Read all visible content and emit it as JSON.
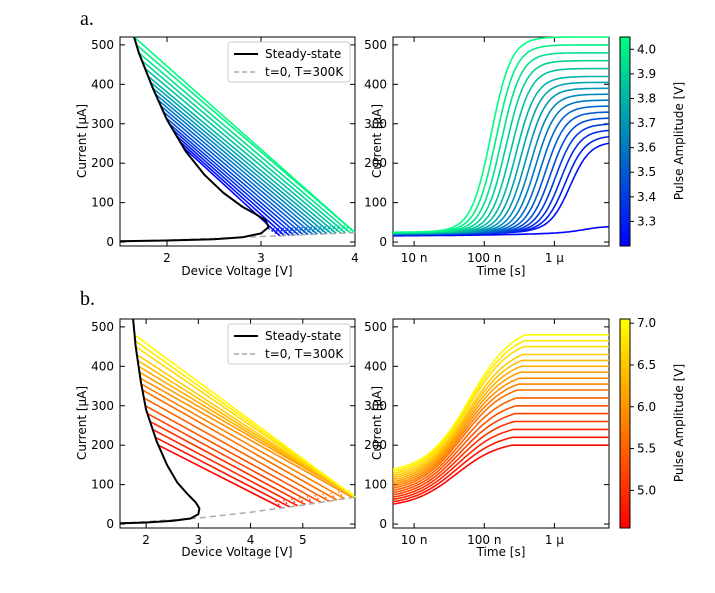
{
  "panels": [
    {
      "label": "a.",
      "colormap": "winter",
      "amplitude_range": [
        3.2,
        4.05
      ],
      "iv": {
        "type": "line",
        "xlabel": "Device Voltage [V]",
        "ylabel": "Current [μA]",
        "xlim": [
          1.5,
          4.0
        ],
        "ylim": [
          -10,
          520
        ],
        "xticks": [
          2,
          3,
          4
        ],
        "yticks": [
          0,
          100,
          200,
          300,
          400,
          500
        ],
        "legend": {
          "placement": "upper-right",
          "entries": [
            {
              "label": "Steady-state",
              "style": "solid",
              "color": "#000000"
            },
            {
              "label": "t=0, T=300K",
              "style": "dashed",
              "color": "#aaaaaa"
            }
          ]
        },
        "steady_state": {
          "x": [
            1.5,
            2.0,
            2.5,
            2.8,
            3.0,
            3.08,
            3.05,
            2.95,
            2.8,
            2.6,
            2.4,
            2.2,
            2.0,
            1.85,
            1.7,
            1.65
          ],
          "y": [
            2,
            4,
            7,
            12,
            22,
            38,
            55,
            70,
            90,
            125,
            170,
            230,
            310,
            390,
            480,
            520
          ]
        },
        "t0": {
          "x": [
            1.5,
            2.0,
            2.5,
            3.0,
            3.5,
            4.0
          ],
          "y": [
            2,
            5,
            9,
            14,
            19,
            24
          ]
        },
        "pulse_lines": {
          "amplitudes": [
            3.2,
            3.25,
            3.3,
            3.35,
            3.4,
            3.45,
            3.5,
            3.55,
            3.6,
            3.65,
            3.7,
            3.75,
            3.8,
            3.85,
            3.9,
            3.95,
            4.0,
            4.05
          ],
          "end_currents": [
            240,
            255,
            270,
            285,
            300,
            315,
            330,
            345,
            360,
            375,
            390,
            405,
            420,
            440,
            460,
            480,
            500,
            520
          ]
        }
      },
      "transient": {
        "type": "line",
        "xlabel": "Time [s]",
        "ylabel": "Current [μA]",
        "xscale": "log",
        "xlim": [
          5e-09,
          6e-06
        ],
        "ylim": [
          -10,
          520
        ],
        "xticks": [
          1e-08,
          1e-07,
          1e-06
        ],
        "xticklabels": [
          "10 n",
          "100 n",
          "1 μ"
        ],
        "yticks": [
          0,
          100,
          200,
          300,
          400,
          500
        ],
        "low_curve": {
          "amplitude": 3.2,
          "final": 40
        }
      },
      "colorbar": {
        "label": "Pulse Amplitude [V]",
        "vmin": 3.2,
        "vmax": 4.05,
        "ticks": [
          3.3,
          3.4,
          3.5,
          3.6,
          3.7,
          3.8,
          3.9,
          4.0
        ],
        "ticklabels": [
          "3.3",
          "3.4",
          "3.5",
          "3.6",
          "3.7",
          "3.8",
          "3.9",
          "4.0"
        ]
      }
    },
    {
      "label": "b.",
      "colormap": "autumn",
      "amplitude_range": [
        4.55,
        7.05
      ],
      "iv": {
        "type": "line",
        "xlabel": "Device Voltage [V]",
        "ylabel": "Current [μA]",
        "xlim": [
          1.5,
          6.0
        ],
        "ylim": [
          -10,
          520
        ],
        "xticks": [
          2,
          3,
          4,
          5
        ],
        "yticks": [
          0,
          100,
          200,
          300,
          400,
          500
        ],
        "legend": {
          "placement": "upper-right",
          "entries": [
            {
              "label": "Steady-state",
              "style": "solid",
              "color": "#000000"
            },
            {
              "label": "t=0, T=300K",
              "style": "dashed",
              "color": "#aaaaaa"
            }
          ]
        },
        "steady_state": {
          "x": [
            1.5,
            2.0,
            2.5,
            2.85,
            3.0,
            3.02,
            2.95,
            2.8,
            2.6,
            2.4,
            2.2,
            2.0,
            1.9,
            1.8,
            1.75
          ],
          "y": [
            2,
            4,
            8,
            14,
            25,
            40,
            55,
            75,
            105,
            150,
            210,
            290,
            360,
            450,
            520
          ]
        },
        "t0": {
          "x": [
            1.5,
            3.0,
            4.0,
            5.0,
            6.0
          ],
          "y": [
            2,
            15,
            30,
            48,
            68
          ]
        },
        "pulse_lines": {
          "amplitudes": [
            4.6,
            4.75,
            4.9,
            5.05,
            5.2,
            5.35,
            5.5,
            5.65,
            5.8,
            5.95,
            6.1,
            6.25,
            6.4,
            6.55,
            6.7,
            6.85,
            7.0
          ],
          "end_currents": [
            200,
            220,
            240,
            260,
            280,
            300,
            320,
            340,
            355,
            370,
            385,
            400,
            415,
            430,
            450,
            465,
            480
          ]
        }
      },
      "transient": {
        "type": "line",
        "xlabel": "Time [s]",
        "ylabel": "Current [μA]",
        "xscale": "log",
        "xlim": [
          5e-09,
          6e-06
        ],
        "ylim": [
          -10,
          520
        ],
        "xticks": [
          1e-08,
          1e-07,
          1e-06
        ],
        "xticklabels": [
          "10 n",
          "100 n",
          "1 μ"
        ],
        "yticks": [
          0,
          100,
          200,
          300,
          400,
          500
        ]
      },
      "colorbar": {
        "label": "Pulse Amplitude [V]",
        "vmin": 4.55,
        "vmax": 7.05,
        "ticks": [
          5.0,
          5.5,
          6.0,
          6.5,
          7.0
        ],
        "ticklabels": [
          "5.0",
          "5.5",
          "6.0",
          "6.5",
          "7.0"
        ]
      }
    }
  ],
  "chart_data": [
    {
      "type": "line",
      "title": "",
      "xlabel": "Device Voltage [V]",
      "ylabel": "Current [μA]",
      "xlim": [
        1.5,
        4.0
      ],
      "ylim": [
        -10,
        520
      ],
      "series": [
        {
          "name": "Steady-state",
          "x": [
            1.5,
            2.0,
            2.5,
            2.8,
            3.0,
            3.08,
            3.05,
            2.95,
            2.8,
            2.6,
            2.4,
            2.2,
            2.0,
            1.85,
            1.7,
            1.65
          ],
          "y": [
            2,
            4,
            7,
            12,
            22,
            38,
            55,
            70,
            90,
            125,
            170,
            230,
            310,
            390,
            480,
            520
          ]
        },
        {
          "name": "t=0, T=300K",
          "x": [
            1.5,
            2.0,
            2.5,
            3.0,
            3.5,
            4.0
          ],
          "y": [
            2,
            5,
            9,
            14,
            19,
            24
          ]
        }
      ]
    },
    {
      "type": "line",
      "title": "",
      "xlabel": "Time [s]",
      "ylabel": "Current [μA]",
      "xscale": "log",
      "xlim": [
        5e-09,
        6e-06
      ],
      "ylim": [
        -10,
        520
      ]
    },
    {
      "type": "line",
      "title": "",
      "xlabel": "Device Voltage [V]",
      "ylabel": "Current [μA]",
      "xlim": [
        1.5,
        6.0
      ],
      "ylim": [
        -10,
        520
      ],
      "series": [
        {
          "name": "Steady-state",
          "x": [
            1.5,
            2.0,
            2.5,
            2.85,
            3.0,
            3.02,
            2.95,
            2.8,
            2.6,
            2.4,
            2.2,
            2.0,
            1.9,
            1.8,
            1.75
          ],
          "y": [
            2,
            4,
            8,
            14,
            25,
            40,
            55,
            75,
            105,
            150,
            210,
            290,
            360,
            450,
            520
          ]
        },
        {
          "name": "t=0, T=300K",
          "x": [
            1.5,
            3.0,
            4.0,
            5.0,
            6.0
          ],
          "y": [
            2,
            15,
            30,
            48,
            68
          ]
        }
      ]
    },
    {
      "type": "line",
      "title": "",
      "xlabel": "Time [s]",
      "ylabel": "Current [μA]",
      "xscale": "log",
      "xlim": [
        5e-09,
        6e-06
      ],
      "ylim": [
        -10,
        520
      ]
    }
  ]
}
